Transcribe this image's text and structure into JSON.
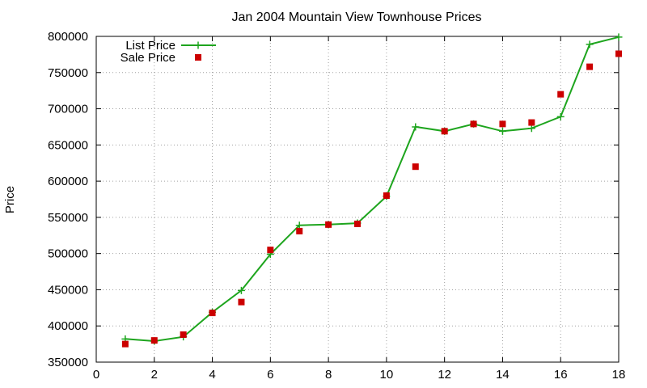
{
  "chart_data": {
    "type": "line",
    "title": "Jan 2004 Mountain View Townhouse Prices",
    "xlabel": "",
    "ylabel": "Price",
    "xlim": [
      0,
      18
    ],
    "ylim": [
      350000,
      800000
    ],
    "xticks": [
      0,
      2,
      4,
      6,
      8,
      10,
      12,
      14,
      16,
      18
    ],
    "yticks": [
      350000,
      400000,
      450000,
      500000,
      550000,
      600000,
      650000,
      700000,
      750000,
      800000
    ],
    "grid": true,
    "legend_position": "top-left",
    "series": [
      {
        "name": "List Price",
        "style": "line+cross",
        "color": "#1ea51e",
        "x": [
          1,
          2,
          3,
          4,
          5,
          6,
          7,
          8,
          9,
          10,
          11,
          12,
          13,
          14,
          15,
          16,
          17,
          18
        ],
        "y": [
          382000,
          379000,
          385000,
          419000,
          449000,
          499000,
          539000,
          540000,
          542000,
          579000,
          675000,
          669000,
          679000,
          669000,
          673000,
          689000,
          789000,
          799000
        ]
      },
      {
        "name": "Sale Price",
        "style": "points",
        "color": "#cc0000",
        "x": [
          1,
          2,
          3,
          4,
          5,
          6,
          7,
          8,
          9,
          10,
          11,
          12,
          13,
          14,
          15,
          16,
          17,
          18
        ],
        "y": [
          375000,
          380000,
          388000,
          418000,
          433000,
          505000,
          531000,
          540000,
          541000,
          580000,
          620000,
          669000,
          679000,
          679000,
          681000,
          720000,
          758000,
          776000
        ]
      }
    ]
  }
}
